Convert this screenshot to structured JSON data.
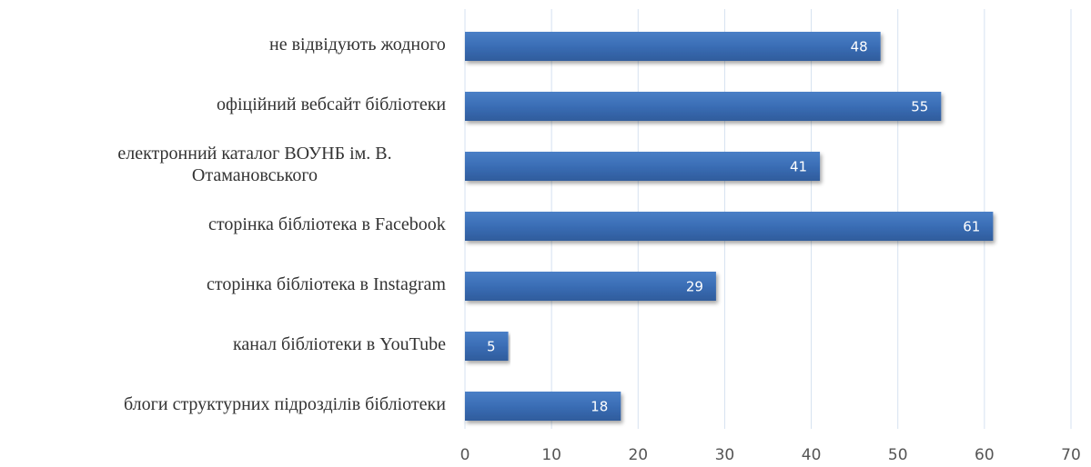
{
  "chart_data": {
    "type": "barh",
    "categories": [
      "не відвідують жодного",
      "офіційний вебсайт бібліотеки",
      "електронний каталог ВОУНБ ім. В. Отамановського",
      "сторінка бібліотека в Facebook",
      "сторінка бібліотека в Instagram",
      "канал бібліотеки в YouTube",
      "блоги структурних  підрозділів бібліотеки"
    ],
    "values": [
      48,
      55,
      41,
      61,
      29,
      5,
      18
    ],
    "color": "#3a6db5",
    "xlim": [
      0,
      70
    ],
    "xticks": [
      0,
      10,
      20,
      30,
      40,
      50,
      60,
      70
    ],
    "grid": true
  }
}
